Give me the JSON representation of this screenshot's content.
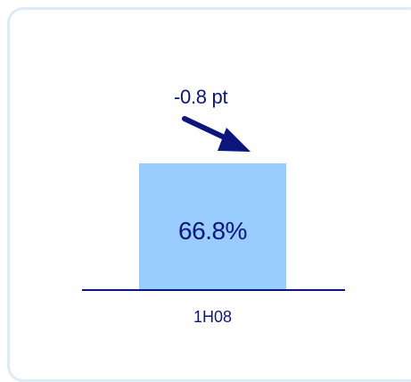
{
  "chart_data": {
    "type": "bar",
    "categories": [
      "1H08"
    ],
    "values": [
      66.8
    ],
    "data_labels": [
      "66.8%"
    ],
    "annotation": "-0.8 pt",
    "title": "",
    "xlabel": "",
    "ylabel": "",
    "ylim": [
      0,
      100
    ],
    "grid": false
  },
  "colors": {
    "bar": "#99ccff",
    "text": "#0b167f",
    "axis": "#0b167f",
    "panel_border": "#dcecf8"
  }
}
